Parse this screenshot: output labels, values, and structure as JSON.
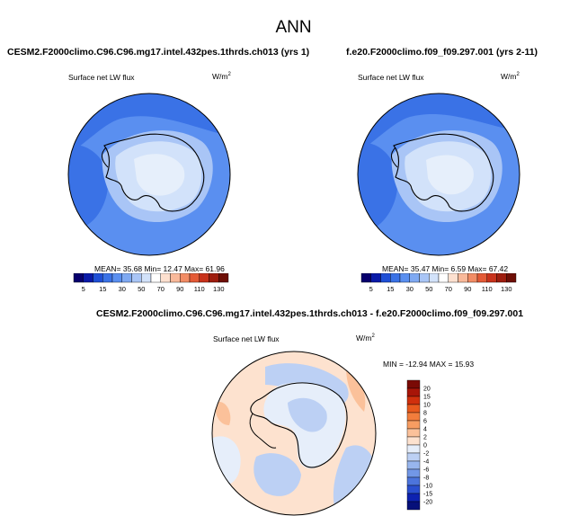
{
  "title": "ANN",
  "panels": [
    {
      "title": "CESM2.F2000climo.C96.C96.mg17.intel.432pes.1thrds.ch013 (yrs 1)",
      "variable": "Surface net LW flux",
      "units": "W/m",
      "units_exp": "2",
      "stats": "MEAN= 35.68  Min= 12.47  Max= 61.96"
    },
    {
      "title": "f.e20.F2000climo.f09_f09.297.001 (yrs 2-11)",
      "variable": "Surface net LW flux",
      "units": "W/m",
      "units_exp": "2",
      "stats": "MEAN= 35.47  Min= 6.59  Max= 67.42"
    }
  ],
  "diff_panel": {
    "title": "CESM2.F2000climo.C96.C96.mg17.intel.432pes.1thrds.ch013 - f.e20.F2000climo.f09_f09.297.001",
    "variable": "Surface net LW flux",
    "units": "W/m",
    "units_exp": "2",
    "stats": "MIN = -12.94 MAX = 15.93"
  },
  "colorbar_main": {
    "labels": [
      "5",
      "15",
      "30",
      "50",
      "70",
      "90",
      "110",
      "130"
    ],
    "colors": [
      "#08006e",
      "#0a1aa8",
      "#1f4fd6",
      "#3a72e6",
      "#5a8ff0",
      "#7fa9f2",
      "#a9c5f6",
      "#d2e2fa",
      "#ffffff",
      "#fde0cf",
      "#f9b99a",
      "#f28c65",
      "#e45a36",
      "#c8321b",
      "#9e1d0e",
      "#6e0f06"
    ]
  },
  "colorbar_diff": {
    "labels": [
      "20",
      "15",
      "10",
      "8",
      "6",
      "4",
      "2",
      "0",
      "-2",
      "-4",
      "-6",
      "-8",
      "-10",
      "-15",
      "-20"
    ],
    "colors": [
      "#7a0a05",
      "#a81508",
      "#d0300d",
      "#e85a1e",
      "#f27d3c",
      "#f79d62",
      "#fbc19a",
      "#fde2cf",
      "#e6eefa",
      "#bcd0f4",
      "#98b6ee",
      "#7297e6",
      "#4c74dc",
      "#2a4fcf",
      "#0d22b0",
      "#06107a"
    ]
  }
}
